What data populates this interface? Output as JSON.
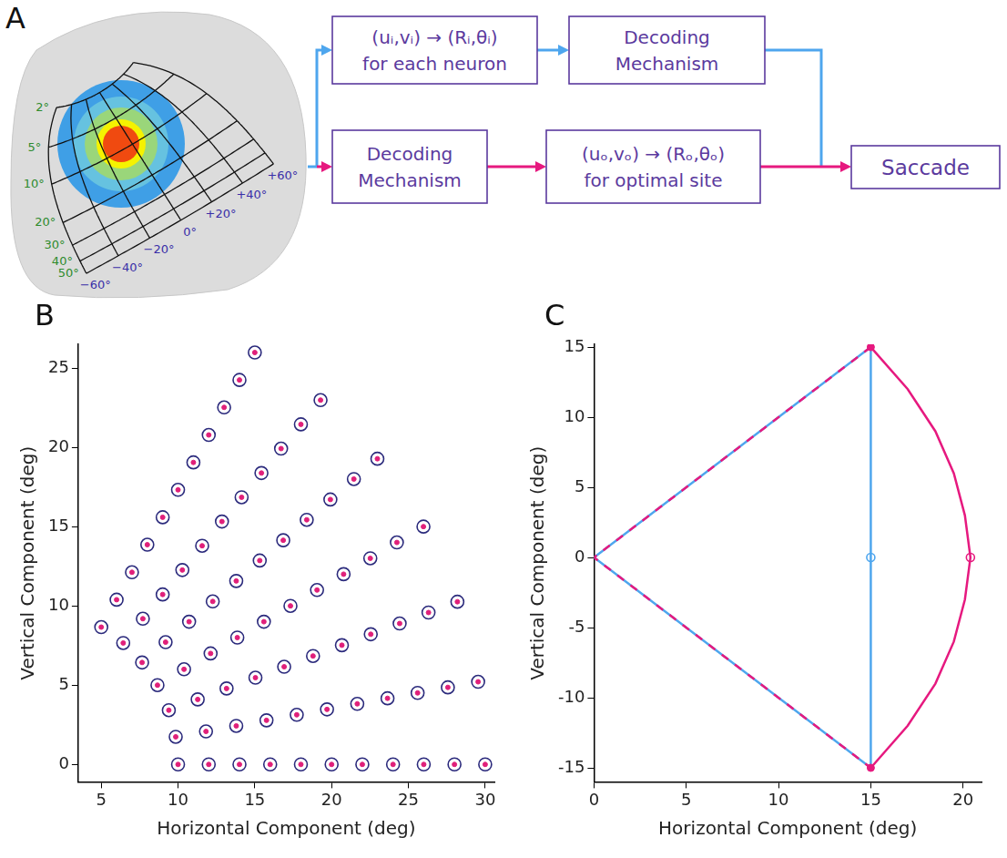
{
  "diagram": {
    "panel_label": "A",
    "map": {
      "eccentricity_ticks": [
        {
          "value": 2,
          "label": "2°"
        },
        {
          "value": 5,
          "label": "5°"
        },
        {
          "value": 10,
          "label": "10°"
        },
        {
          "value": 20,
          "label": "20°"
        },
        {
          "value": 30,
          "label": "30°"
        },
        {
          "value": 40,
          "label": "40°"
        },
        {
          "value": 50,
          "label": "50°"
        }
      ],
      "direction_ticks": [
        {
          "value": 60,
          "label": "+60°"
        },
        {
          "value": 40,
          "label": "+40°"
        },
        {
          "value": 20,
          "label": "+20°"
        },
        {
          "value": 0,
          "label": "0°"
        },
        {
          "value": -20,
          "label": "−20°"
        },
        {
          "value": -40,
          "label": "−40°"
        },
        {
          "value": -60,
          "label": "−60°"
        }
      ]
    },
    "flow": {
      "upper_path": [
        [
          "(uᵢ,vᵢ) → (Rᵢ,θᵢ)",
          "for each neuron"
        ],
        [
          "Decoding",
          "Mechanism"
        ]
      ],
      "lower_path": [
        [
          "Decoding",
          "Mechanism"
        ],
        [
          "(uₒ,vₒ) → (Rₒ,θₒ)",
          "for optimal site"
        ]
      ],
      "output": "Saccade"
    }
  },
  "chart_data": [
    {
      "panel_label": "B",
      "type": "scatter",
      "x_label": "Horizontal Component (deg)",
      "y_label": "Vertical Component (deg)",
      "xlim": [
        3.5,
        30.6
      ],
      "xticks": [
        5,
        10,
        15,
        20,
        25,
        30
      ],
      "ylim": [
        -1.1,
        26.5
      ],
      "yticks": [
        0,
        5,
        10,
        15,
        20,
        25
      ],
      "grid": false,
      "x": [
        10,
        12,
        14,
        16,
        18,
        20,
        22,
        24,
        26,
        28,
        30,
        9.85,
        11.82,
        13.79,
        15.76,
        17.73,
        19.7,
        21.67,
        23.64,
        25.6,
        27.57,
        29.54,
        9.4,
        11.28,
        13.16,
        15.04,
        16.91,
        18.79,
        20.67,
        22.55,
        24.43,
        26.31,
        28.19,
        8.66,
        10.39,
        12.12,
        13.86,
        15.59,
        17.32,
        19.05,
        20.78,
        22.52,
        24.25,
        25.98,
        7.66,
        9.19,
        10.72,
        12.26,
        13.79,
        15.32,
        16.85,
        18.38,
        19.92,
        21.45,
        22.98,
        6.43,
        7.71,
        9,
        10.28,
        11.57,
        12.86,
        14.14,
        15.43,
        16.71,
        18,
        19.28,
        5,
        6,
        7,
        8,
        9,
        10,
        11,
        12,
        13,
        14,
        15
      ],
      "series": [
        {
          "color": "#2b2a7c",
          "marker": "circle_open",
          "line_style": "none",
          "values": [
            0,
            0,
            0,
            0,
            0,
            0,
            0,
            0,
            0,
            0,
            0,
            1.74,
            2.08,
            2.43,
            2.78,
            3.13,
            3.47,
            3.82,
            4.17,
            4.51,
            4.86,
            5.21,
            3.42,
            4.1,
            4.79,
            5.47,
            6.16,
            6.84,
            7.52,
            8.21,
            8.89,
            9.58,
            10.26,
            5,
            6,
            7,
            8,
            9,
            10,
            11,
            12,
            13,
            14,
            15,
            6.43,
            7.71,
            9,
            10.28,
            11.57,
            12.86,
            14.14,
            15.43,
            16.71,
            18,
            19.28,
            7.66,
            9.19,
            10.72,
            12.26,
            13.79,
            15.32,
            16.85,
            18.38,
            19.92,
            21.45,
            22.98,
            8.66,
            10.39,
            12.12,
            13.86,
            15.59,
            17.32,
            19.05,
            20.78,
            22.52,
            24.25,
            25.98
          ]
        },
        {
          "color": "#e0207a",
          "marker": "dot",
          "line_style": "none",
          "values": [
            0,
            0,
            0,
            0,
            0,
            0,
            0,
            0,
            0,
            0,
            0,
            1.74,
            2.08,
            2.43,
            2.78,
            3.13,
            3.47,
            3.82,
            4.17,
            4.51,
            4.86,
            5.21,
            3.42,
            4.1,
            4.79,
            5.47,
            6.16,
            6.84,
            7.52,
            8.21,
            8.89,
            9.58,
            10.26,
            5,
            6,
            7,
            8,
            9,
            10,
            11,
            12,
            13,
            14,
            15,
            6.43,
            7.71,
            9,
            10.28,
            11.57,
            12.86,
            14.14,
            15.43,
            16.71,
            18,
            19.28,
            7.66,
            9.19,
            10.72,
            12.26,
            13.79,
            15.32,
            16.85,
            18.38,
            19.92,
            21.45,
            22.98,
            8.66,
            10.39,
            12.12,
            13.86,
            15.59,
            17.32,
            19.05,
            20.78,
            22.52,
            24.25,
            25.98
          ]
        }
      ]
    },
    {
      "panel_label": "C",
      "type": "scatter",
      "x_label": "Horizontal Component (deg)",
      "y_label": "Vertical Component (deg)",
      "xlim": [
        0,
        21
      ],
      "xticks": [
        0,
        5,
        10,
        15,
        20
      ],
      "ylim": [
        -16,
        15.2
      ],
      "yticks": [
        -15,
        -10,
        -5,
        0,
        5,
        10,
        15
      ],
      "grid": false,
      "series": [
        {
          "color": "#4ea6ee",
          "marker": "none",
          "line_style": "solid",
          "x": [
            0,
            15,
            15,
            0
          ],
          "values": [
            0,
            15,
            -15,
            0
          ]
        },
        {
          "color": "#e6197f",
          "marker": "none",
          "line_style": "dashed",
          "x": [
            15,
            0,
            15
          ],
          "values": [
            15,
            0,
            -15
          ]
        },
        {
          "color": "#e6197f",
          "marker": "none",
          "line_style": "solid",
          "x": [
            15,
            17,
            18.5,
            19.5,
            20.1,
            20.4,
            20.1,
            19.5,
            18.5,
            17,
            15
          ],
          "values": [
            15,
            12,
            9,
            6,
            3,
            0,
            -3,
            -6,
            -9,
            -12,
            -15
          ]
        },
        {
          "color": "#4ea6ee",
          "marker": "circle_open",
          "line_style": "none",
          "x": [
            15
          ],
          "values": [
            0
          ]
        },
        {
          "color": "#e6197f",
          "marker": "circle_open",
          "line_style": "none",
          "x": [
            20.4
          ],
          "values": [
            0
          ]
        },
        {
          "color": "#e6197f",
          "marker": "dot",
          "line_style": "none",
          "x": [
            15,
            15
          ],
          "values": [
            15,
            -15
          ]
        }
      ]
    }
  ]
}
